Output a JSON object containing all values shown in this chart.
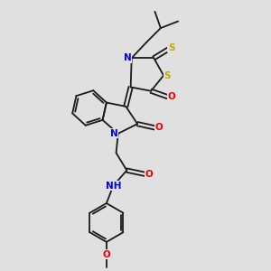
{
  "bg_color": "#e0e0e0",
  "bond_color": "#1a1a1a",
  "bond_lw": 1.3,
  "dbl_sep": 0.1,
  "atom_colors": {
    "N": "#0000ee",
    "O": "#ee0000",
    "S": "#bbaa00",
    "C": "#1a1a1a"
  },
  "fs": 7.5,
  "xlim": [
    0,
    10
  ],
  "ylim": [
    0,
    14
  ]
}
